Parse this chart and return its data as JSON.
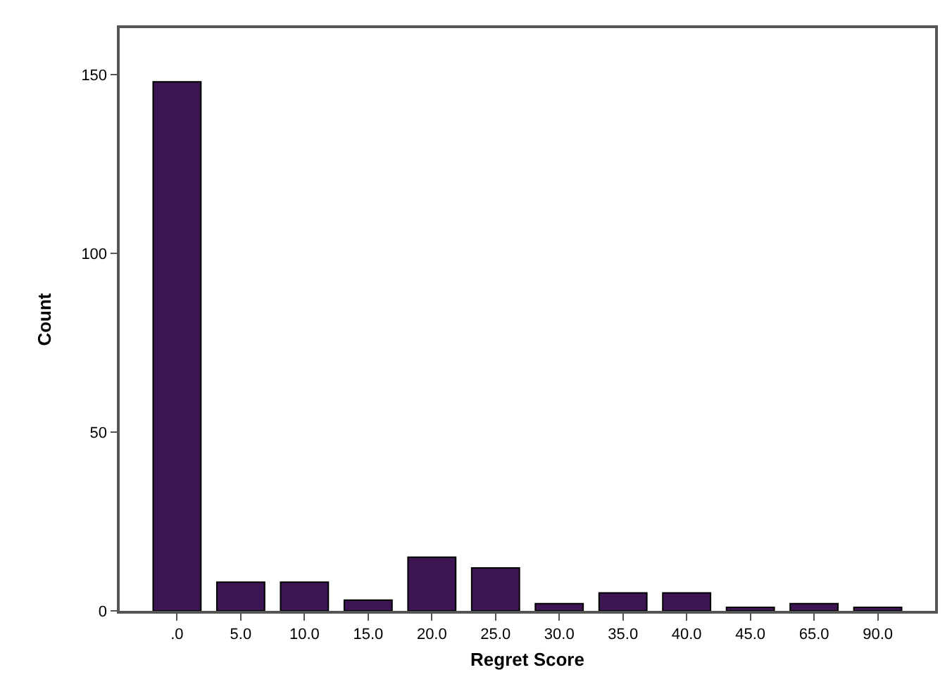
{
  "chart_data": {
    "type": "bar",
    "xlabel": "Regret Score",
    "ylabel": "Count",
    "categories": [
      ".0",
      "5.0",
      "10.0",
      "15.0",
      "20.0",
      "25.0",
      "30.0",
      "35.0",
      "40.0",
      "45.0",
      "65.0",
      "90.0"
    ],
    "values": [
      148,
      8,
      8,
      3,
      15,
      12,
      2,
      5,
      5,
      1,
      2,
      1
    ],
    "color": "#3d1552",
    "ylim": [
      0,
      163
    ],
    "yticks": [
      0,
      50,
      100,
      150
    ],
    "grid": false
  }
}
